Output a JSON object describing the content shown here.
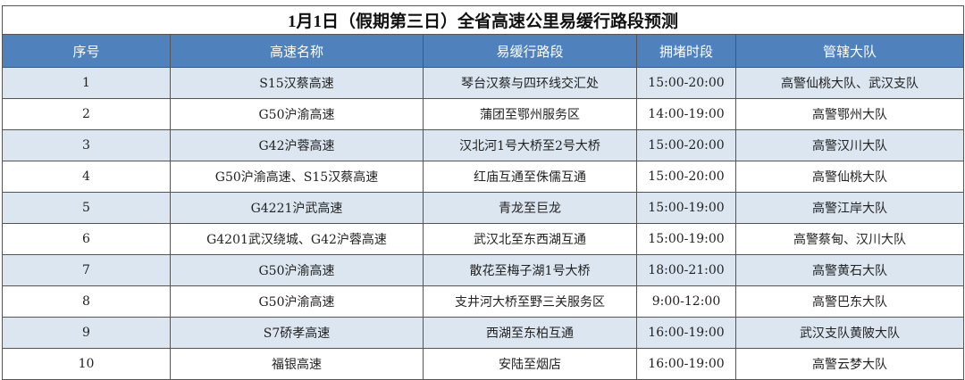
{
  "title": "1月1日（假期第三日）全省高速公里易缓行路段预测",
  "columns": [
    "序号",
    "高速名称",
    "易缓行路段",
    "拥堵时段",
    "管辖大队"
  ],
  "rows": [
    [
      "1",
      "S15汉蔡高速",
      "琴台汉蔡与四环线交汇处",
      "15:00-20:00",
      "高警仙桃大队、武汉支队"
    ],
    [
      "2",
      "G50沪渝高速",
      "蒲团至鄂州服务区",
      "14:00-19:00",
      "高警鄂州大队"
    ],
    [
      "3",
      "G42沪蓉高速",
      "汉北河1号大桥至2号大桥",
      "15:00-20:00",
      "高警汉川大队"
    ],
    [
      "4",
      "G50沪渝高速、S15汉蔡高速",
      "红庙互通至侏儒互通",
      "15:00-20:00",
      "高警仙桃大队"
    ],
    [
      "5",
      "G4221沪武高速",
      "青龙至巨龙",
      "15:00-19:00",
      "高警江岸大队"
    ],
    [
      "6",
      "G4201武汉绕城、G42沪蓉高速",
      "武汉北至东西湖互通",
      "15:00-19:00",
      "高警蔡甸、汉川大队"
    ],
    [
      "7",
      "G50沪渝高速",
      "散花至梅子湖1号大桥",
      "18:00-21:00",
      "高警黄石大队"
    ],
    [
      "8",
      "G50沪渝高速",
      "支井河大桥至野三关服务区",
      "9:00-12:00",
      "高警巴东大队"
    ],
    [
      "9",
      "S7硚孝高速",
      "西湖至东柏互通",
      "16:00-19:00",
      "武汉支队黄陂大队"
    ],
    [
      "10",
      "福银高速",
      "安陆至烟店",
      "16:00-19:00",
      "高警云梦大队"
    ]
  ],
  "colors": {
    "header_bg": "#4f81bd",
    "stripe": "#dce6f1"
  }
}
